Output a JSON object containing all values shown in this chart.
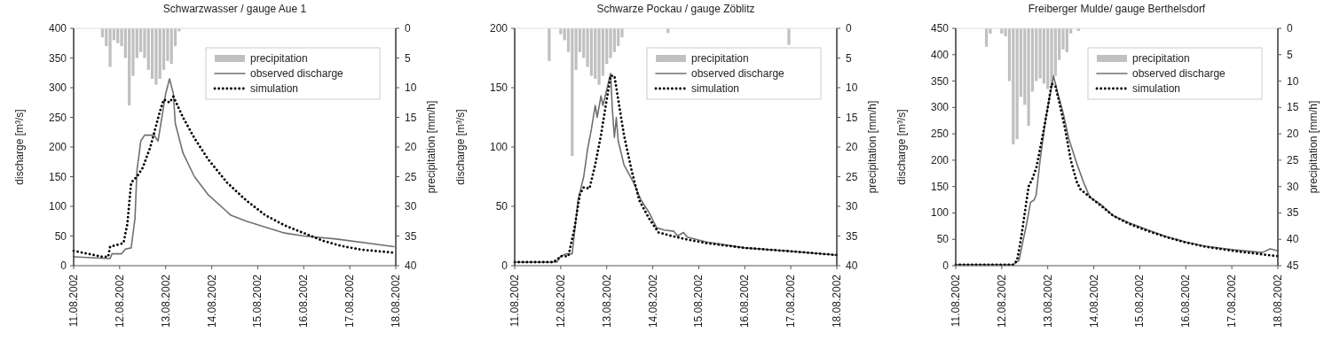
{
  "chart_data": [
    {
      "type": "line",
      "title": "Schwarzwasser / gauge Aue 1",
      "ylabel": "discharge [m³/s]",
      "y2label": "precipitation [mm/h]",
      "legend": "top right",
      "xlim": [
        "2002-08-11",
        "2002-08-18"
      ],
      "xticks": [
        {
          "value": "2002-08-11",
          "label": "11.08.2002"
        },
        {
          "value": "2002-08-12",
          "label": "12.08.2002"
        },
        {
          "value": "2002-08-13",
          "label": "13.08.2002"
        },
        {
          "value": "2002-08-14",
          "label": "14.08.2002"
        },
        {
          "value": "2002-08-15",
          "label": "15.08.2002"
        },
        {
          "value": "2002-08-16",
          "label": "16.08.2002"
        },
        {
          "value": "2002-08-17",
          "label": "17.08.2002"
        },
        {
          "value": "2002-08-18",
          "label": "18.08.2002"
        }
      ],
      "ylim": [
        0,
        400
      ],
      "yticks": [
        0,
        50,
        100,
        150,
        200,
        250,
        300,
        350,
        400
      ],
      "y2lim": [
        40,
        0
      ],
      "y2ticks": [
        0,
        5,
        10,
        15,
        20,
        25,
        30,
        35,
        40
      ],
      "series": [
        {
          "name": "precipitation",
          "type": "bar",
          "axis": "y2",
          "color": "#c0c0c0",
          "x": [
            "2002-08-11T15:00",
            "2002-08-11T17:00",
            "2002-08-11T19:00",
            "2002-08-11T21:00",
            "2002-08-11T23:00",
            "2002-08-12T01:00",
            "2002-08-12T03:00",
            "2002-08-12T05:00",
            "2002-08-12T07:00",
            "2002-08-12T09:00",
            "2002-08-12T11:00",
            "2002-08-12T13:00",
            "2002-08-12T15:00",
            "2002-08-12T17:00",
            "2002-08-12T19:00",
            "2002-08-12T21:00",
            "2002-08-12T23:00",
            "2002-08-13T01:00",
            "2002-08-13T03:00",
            "2002-08-13T05:00",
            "2002-08-13T07:00"
          ],
          "values": [
            1.5,
            3,
            6.5,
            2,
            2.5,
            3,
            5,
            13,
            8,
            5,
            4,
            5,
            7,
            8.5,
            9.5,
            8.5,
            7,
            5.5,
            6,
            3,
            0.5
          ]
        },
        {
          "name": "observed discharge",
          "color": "#707070",
          "line_style": "solid",
          "x": [
            "2002-08-11T00:00",
            "2002-08-11T19:00",
            "2002-08-11T20:00",
            "2002-08-12T01:00",
            "2002-08-12T03:00",
            "2002-08-12T06:00",
            "2002-08-12T08:00",
            "2002-08-12T09:00",
            "2002-08-12T11:00",
            "2002-08-12T13:00",
            "2002-08-12T18:00",
            "2002-08-12T20:00",
            "2002-08-12T22:00",
            "2002-08-13T00:00",
            "2002-08-13T02:00",
            "2002-08-13T04:00",
            "2002-08-13T05:00",
            "2002-08-13T09:00",
            "2002-08-13T15:00",
            "2002-08-13T22:00",
            "2002-08-14T10:00",
            "2002-08-14T18:00",
            "2002-08-15T04:00",
            "2002-08-15T14:00",
            "2002-08-16T00:00",
            "2002-08-16T17:00",
            "2002-08-17T23:00"
          ],
          "values": [
            15,
            12,
            20,
            20,
            28,
            30,
            80,
            160,
            210,
            220,
            220,
            210,
            250,
            290,
            315,
            290,
            240,
            190,
            150,
            120,
            85,
            75,
            65,
            55,
            50,
            45,
            32
          ]
        },
        {
          "name": "simulation",
          "color": "#000000",
          "line_style": "dotted",
          "x": [
            "2002-08-11T00:00",
            "2002-08-11T15:00",
            "2002-08-11T18:00",
            "2002-08-11T19:00",
            "2002-08-12T02:00",
            "2002-08-12T04:00",
            "2002-08-12T06:00",
            "2002-08-12T09:00",
            "2002-08-12T12:00",
            "2002-08-12T16:00",
            "2002-08-12T21:00",
            "2002-08-12T23:00",
            "2002-08-13T02:00",
            "2002-08-13T04:00",
            "2002-08-13T09:00",
            "2002-08-13T15:00",
            "2002-08-13T22:00",
            "2002-08-14T08:00",
            "2002-08-14T18:00",
            "2002-08-15T04:00",
            "2002-08-15T14:00",
            "2002-08-16T00:00",
            "2002-08-16T10:00",
            "2002-08-16T20:00",
            "2002-08-17T06:00",
            "2002-08-17T23:00"
          ],
          "values": [
            25,
            15,
            15,
            32,
            38,
            70,
            140,
            150,
            165,
            200,
            260,
            280,
            275,
            285,
            250,
            215,
            180,
            140,
            110,
            85,
            68,
            55,
            42,
            33,
            27,
            22
          ]
        }
      ]
    },
    {
      "type": "line",
      "title": "Schwarze Pockau / gauge Zöblitz",
      "ylabel": "discharge [m³/s]",
      "y2label": "precipitation [mm/h]",
      "legend": "top right",
      "xlim": [
        "2002-08-11",
        "2002-08-18"
      ],
      "xticks": [
        {
          "value": "2002-08-11",
          "label": "11.08.2002"
        },
        {
          "value": "2002-08-12",
          "label": "12.08.2002"
        },
        {
          "value": "2002-08-13",
          "label": "13.08.2002"
        },
        {
          "value": "2002-08-14",
          "label": "14.08.2002"
        },
        {
          "value": "2002-08-15",
          "label": "15.08.2002"
        },
        {
          "value": "2002-08-16",
          "label": "16.08.2002"
        },
        {
          "value": "2002-08-17",
          "label": "17.08.2002"
        },
        {
          "value": "2002-08-18",
          "label": "18.08.2002"
        }
      ],
      "ylim": [
        0,
        200
      ],
      "yticks": [
        0,
        50,
        100,
        150,
        200
      ],
      "y2lim": [
        40,
        0
      ],
      "y2ticks": [
        0,
        5,
        10,
        15,
        20,
        25,
        30,
        35,
        40
      ],
      "series": [
        {
          "name": "precipitation",
          "type": "bar",
          "axis": "y2",
          "color": "#c0c0c0",
          "x": [
            "2002-08-11T18:00",
            "2002-08-12T00:00",
            "2002-08-12T02:00",
            "2002-08-12T04:00",
            "2002-08-12T06:00",
            "2002-08-12T08:00",
            "2002-08-12T10:00",
            "2002-08-12T12:00",
            "2002-08-12T14:00",
            "2002-08-12T16:00",
            "2002-08-12T18:00",
            "2002-08-12T20:00",
            "2002-08-12T22:00",
            "2002-08-13T00:00",
            "2002-08-13T02:00",
            "2002-08-13T04:00",
            "2002-08-13T06:00",
            "2002-08-13T08:00",
            "2002-08-14T08:00",
            "2002-08-16T23:00"
          ],
          "values": [
            5.5,
            1,
            2,
            4,
            21.5,
            7,
            4,
            5,
            6.5,
            8,
            8.5,
            9.5,
            8,
            6,
            5,
            4,
            3,
            1.5,
            0.8,
            2.8
          ]
        },
        {
          "name": "observed discharge",
          "color": "#707070",
          "line_style": "solid",
          "x": [
            "2002-08-11T00:00",
            "2002-08-11T22:00",
            "2002-08-12T00:00",
            "2002-08-12T03:00",
            "2002-08-12T06:00",
            "2002-08-12T07:00",
            "2002-08-12T09:00",
            "2002-08-12T12:00",
            "2002-08-12T14:00",
            "2002-08-12T16:00",
            "2002-08-12T18:00",
            "2002-08-12T19:00",
            "2002-08-12T21:00",
            "2002-08-12T22:00",
            "2002-08-13T01:00",
            "2002-08-13T02:00",
            "2002-08-13T03:00",
            "2002-08-13T04:00",
            "2002-08-13T05:00",
            "2002-08-13T06:00",
            "2002-08-13T09:00",
            "2002-08-13T14:00",
            "2002-08-13T18:00",
            "2002-08-13T22:00",
            "2002-08-14T02:00",
            "2002-08-14T06:00",
            "2002-08-14T11:00",
            "2002-08-14T13:00",
            "2002-08-14T16:00",
            "2002-08-14T18:00",
            "2002-08-15T04:00",
            "2002-08-16T00:00",
            "2002-08-17T01:00",
            "2002-08-18T00:00"
          ],
          "values": [
            3,
            3,
            8,
            10,
            10,
            25,
            55,
            75,
            98,
            115,
            135,
            125,
            143,
            135,
            155,
            162,
            130,
            108,
            125,
            105,
            85,
            70,
            55,
            45,
            32,
            30,
            29,
            25,
            28,
            24,
            20,
            15,
            12,
            9
          ]
        },
        {
          "name": "simulation",
          "color": "#000000",
          "line_style": "dotted",
          "x": [
            "2002-08-11T00:00",
            "2002-08-11T20:00",
            "2002-08-11T22:00",
            "2002-08-12T00:00",
            "2002-08-12T04:00",
            "2002-08-12T07:00",
            "2002-08-12T10:00",
            "2002-08-12T12:00",
            "2002-08-12T15:00",
            "2002-08-12T18:00",
            "2002-08-12T21:00",
            "2002-08-13T00:00",
            "2002-08-13T02:00",
            "2002-08-13T04:00",
            "2002-08-13T06:00",
            "2002-08-13T09:00",
            "2002-08-13T13:00",
            "2002-08-13T17:00",
            "2002-08-13T22:00",
            "2002-08-14T03:00",
            "2002-08-14T10:00",
            "2002-08-14T18:00",
            "2002-08-15T04:00",
            "2002-08-16T00:00",
            "2002-08-17T01:00",
            "2002-08-18T00:00"
          ],
          "values": [
            3,
            3,
            5,
            8,
            8,
            30,
            60,
            66,
            65,
            85,
            110,
            140,
            160,
            160,
            140,
            110,
            80,
            55,
            40,
            28,
            25,
            22,
            19,
            15,
            12,
            9
          ]
        }
      ]
    },
    {
      "type": "line",
      "title": "Freiberger Mulde/ gauge Berthelsdorf",
      "ylabel": "discharge [m³/s]",
      "y2label": "precipitation [mm/h]",
      "legend": "top right",
      "xlim": [
        "2002-08-11",
        "2002-08-18"
      ],
      "xticks": [
        {
          "value": "2002-08-11",
          "label": "11.08.2002"
        },
        {
          "value": "2002-08-12",
          "label": "12.08.2002"
        },
        {
          "value": "2002-08-13",
          "label": "13.08.2002"
        },
        {
          "value": "2002-08-14",
          "label": "14.08.2002"
        },
        {
          "value": "2002-08-15",
          "label": "15.08.2002"
        },
        {
          "value": "2002-08-16",
          "label": "16.08.2002"
        },
        {
          "value": "2002-08-17",
          "label": "17.08.2002"
        },
        {
          "value": "2002-08-18",
          "label": "18.08.2002"
        }
      ],
      "ylim": [
        0,
        450
      ],
      "yticks": [
        0,
        50,
        100,
        150,
        200,
        250,
        300,
        350,
        400,
        450
      ],
      "y2lim": [
        45,
        0
      ],
      "y2ticks": [
        0,
        5,
        10,
        15,
        20,
        25,
        30,
        35,
        40,
        45
      ],
      "series": [
        {
          "name": "precipitation",
          "type": "bar",
          "axis": "y2",
          "color": "#c0c0c0",
          "x": [
            "2002-08-11T16:00",
            "2002-08-11T18:00",
            "2002-08-12T00:00",
            "2002-08-12T02:00",
            "2002-08-12T04:00",
            "2002-08-12T06:00",
            "2002-08-12T08:00",
            "2002-08-12T10:00",
            "2002-08-12T12:00",
            "2002-08-12T14:00",
            "2002-08-12T16:00",
            "2002-08-12T18:00",
            "2002-08-12T20:00",
            "2002-08-12T22:00",
            "2002-08-13T00:00",
            "2002-08-13T02:00",
            "2002-08-13T04:00",
            "2002-08-13T06:00",
            "2002-08-13T08:00",
            "2002-08-13T10:00",
            "2002-08-13T12:00",
            "2002-08-13T16:00"
          ],
          "values": [
            3.5,
            1,
            1,
            1.5,
            10,
            22,
            21,
            13,
            14.5,
            18.5,
            12,
            10,
            9.5,
            10.5,
            11.5,
            10.5,
            9,
            6,
            4,
            4.5,
            1,
            0.5
          ]
        },
        {
          "name": "observed discharge",
          "color": "#707070",
          "line_style": "solid",
          "x": [
            "2002-08-11T00:00",
            "2002-08-12T06:00",
            "2002-08-12T09:00",
            "2002-08-12T11:00",
            "2002-08-12T13:00",
            "2002-08-12T15:00",
            "2002-08-12T17:00",
            "2002-08-12T18:00",
            "2002-08-12T20:00",
            "2002-08-12T23:00",
            "2002-08-13T02:00",
            "2002-08-13T03:00",
            "2002-08-13T05:00",
            "2002-08-13T08:00",
            "2002-08-13T11:00",
            "2002-08-13T15:00",
            "2002-08-13T19:00",
            "2002-08-13T22:00",
            "2002-08-14T04:00",
            "2002-08-14T10:00",
            "2002-08-14T18:00",
            "2002-08-15T04:00",
            "2002-08-15T14:00",
            "2002-08-16T00:00",
            "2002-08-16T10:00",
            "2002-08-17T01:00",
            "2002-08-17T16:00",
            "2002-08-17T20:00",
            "2002-08-18T00:00"
          ],
          "values": [
            2,
            2,
            10,
            45,
            80,
            120,
            125,
            135,
            200,
            280,
            340,
            360,
            330,
            290,
            240,
            195,
            155,
            130,
            115,
            95,
            82,
            68,
            55,
            45,
            37,
            30,
            25,
            32,
            28
          ]
        },
        {
          "name": "simulation",
          "color": "#000000",
          "line_style": "dotted",
          "x": [
            "2002-08-11T00:00",
            "2002-08-12T06:00",
            "2002-08-12T08:00",
            "2002-08-12T10:00",
            "2002-08-12T12:00",
            "2002-08-12T14:00",
            "2002-08-12T16:00",
            "2002-08-12T18:00",
            "2002-08-12T21:00",
            "2002-08-13T00:00",
            "2002-08-13T02:00",
            "2002-08-13T04:00",
            "2002-08-13T06:00",
            "2002-08-13T09:00",
            "2002-08-13T12:00",
            "2002-08-13T15:00",
            "2002-08-13T17:00",
            "2002-08-13T22:00",
            "2002-08-14T04:00",
            "2002-08-14T10:00",
            "2002-08-14T18:00",
            "2002-08-15T04:00",
            "2002-08-15T14:00",
            "2002-08-16T00:00",
            "2002-08-16T10:00",
            "2002-08-17T01:00",
            "2002-08-18T00:00"
          ],
          "values": [
            2,
            2,
            10,
            50,
            100,
            150,
            165,
            185,
            240,
            300,
            345,
            340,
            310,
            260,
            200,
            160,
            145,
            130,
            113,
            95,
            80,
            66,
            54,
            44,
            36,
            28,
            18
          ]
        }
      ]
    }
  ]
}
